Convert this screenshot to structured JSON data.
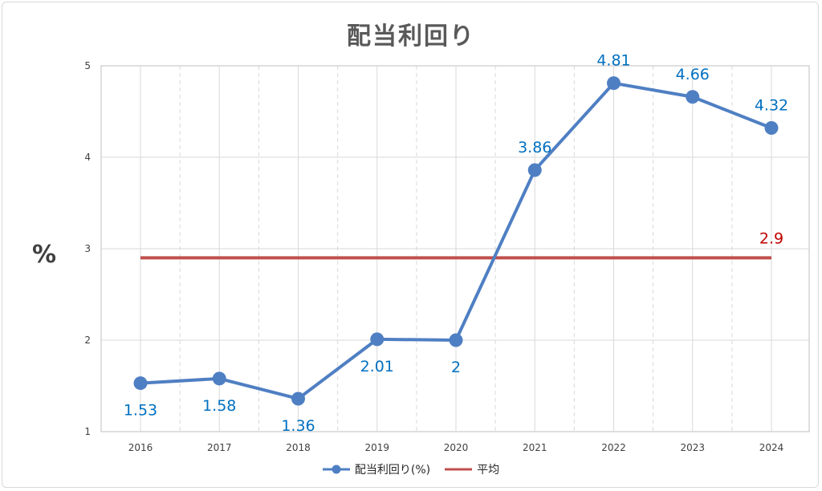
{
  "chart_data": {
    "type": "line",
    "title": "配当利回り",
    "ylabel": "%",
    "xlabel": "",
    "categories": [
      "2016",
      "2017",
      "2018",
      "2019",
      "2020",
      "2021",
      "2022",
      "2023",
      "2024"
    ],
    "ylim": [
      1,
      5
    ],
    "yticks": [
      "1",
      "2",
      "3",
      "4",
      "5"
    ],
    "grid": true,
    "legend_position": "bottom",
    "series": [
      {
        "name": "配当利回り(%)",
        "values": [
          1.53,
          1.58,
          1.36,
          2.01,
          2,
          3.86,
          4.81,
          4.66,
          4.32
        ],
        "labels": [
          "1.53",
          "1.58",
          "1.36",
          "2.01",
          "2",
          "3.86",
          "4.81",
          "4.66",
          "4.32"
        ],
        "color": "#4f7fc3",
        "label_color": "#0070c0"
      },
      {
        "name": "平均",
        "value": 2.9,
        "label": "2.9",
        "color": "#c0504d",
        "label_color": "#c00000"
      }
    ]
  }
}
